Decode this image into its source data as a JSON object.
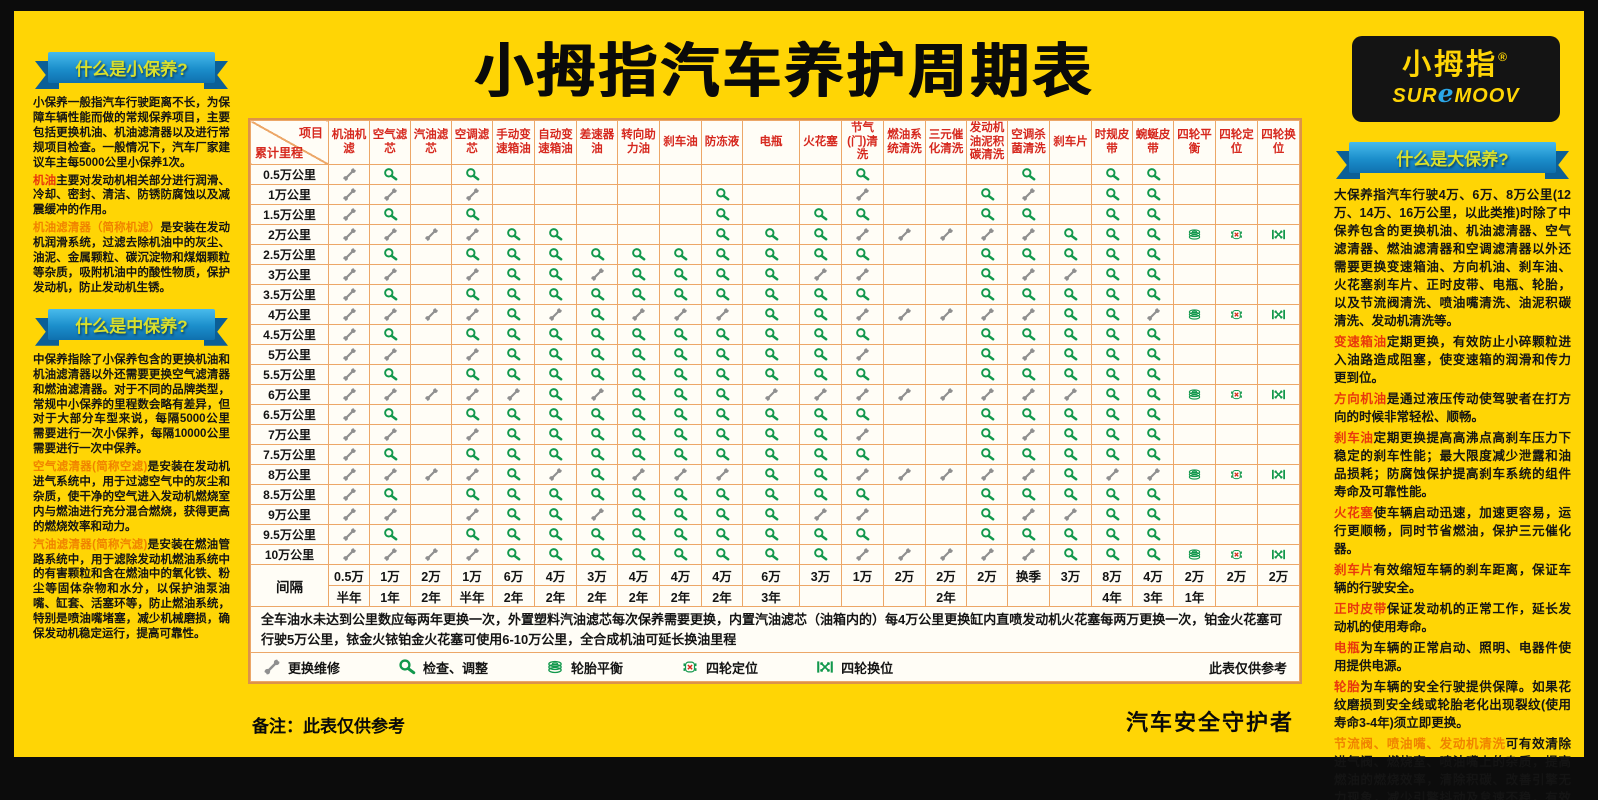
{
  "colors": {
    "background_yellow": "#ffd505",
    "frame_black": "#0c0c0c",
    "table_border_orange": "#eca768",
    "header_red": "#d6281e",
    "icon_green": "#12984c",
    "icon_gray": "#8f8f8f",
    "ribbon_blue": "#1b8ecb",
    "term_red": "#e8380d",
    "term_orange": "#f08300",
    "alignment_x_red": "#d42b1e"
  },
  "title": "小拇指汽车养护周期表",
  "logo": {
    "cn": "小拇指",
    "reg": "®",
    "en_left": "SUR",
    "en_e": "e",
    "en_right": "MOOV"
  },
  "sidebar_left": {
    "sections": [
      {
        "ribbon": "什么是小保养?",
        "paragraphs": [
          {
            "term": "",
            "color": "",
            "text": "小保养一般指汽车行驶距离不长，为保障车辆性能而做的常规保养项目，主要包括更换机油、机油滤清器以及进行常规项目检查。一般情况下，汽车厂家建议车主每5000公里小保养1次。"
          },
          {
            "term": "机油",
            "color": "term-red",
            "text": "主要对发动机相关部分进行润滑、冷却、密封、清洁、防锈防腐蚀以及减震缓冲的作用。"
          },
          {
            "term": "机油滤清器（简称机滤）",
            "color": "term-orange",
            "text": "是安装在发动机润滑系统，过滤去除机油中的灰尘、油泥、金属颗粒、碳沉淀物和煤烟颗粒等杂质，吸附机油中的酸性物质，保护发动机，防止发动机生锈。"
          }
        ]
      },
      {
        "ribbon": "什么是中保养?",
        "paragraphs": [
          {
            "term": "",
            "color": "",
            "text": "中保养指除了小保养包含的更换机油和机油滤清器以外还需要更换空气滤清器和燃油滤清器。对于不同的品牌类型，常规中小保养的里程数会略有差异，但对于大部分车型来说，每隔5000公里需要进行一次小保养，每隔10000公里需要进行一次中保养。"
          },
          {
            "term": "空气滤清器(简称空滤)",
            "color": "term-orange",
            "text": "是安装在发动机进气系统中，用于过滤空气中的灰尘和杂质，使干净的空气进入发动机燃烧室内与燃油进行充分混合燃烧，获得更高的燃烧效率和动力。"
          },
          {
            "term": "汽油滤清器(简称汽滤)",
            "color": "term-orange",
            "text": "是安装在燃油管路系统中，用于滤除发动机燃油系统中的有害颗粒和含在燃油中的氧化铁、粉尘等固体杂物和水分，以保护油泵油嘴、缸套、活塞环等，防止燃油系统，特别是喷油嘴堵塞，减少机械磨损，确保发动机稳定运行，提高可靠性。"
          }
        ]
      }
    ]
  },
  "sidebar_right": {
    "sections": [
      {
        "ribbon": "什么是大保养?",
        "paragraphs": [
          {
            "term": "",
            "color": "",
            "text": "大保养指汽车行驶4万、6万、8万公里(12万、14万、16万公里，以此类推)时除了中保养包含的更换机油、机油滤清器、空气滤清器、燃油滤清器和空调滤清器以外还需要更换变速箱油、方向机油、刹车油、火花塞刹车片、正时皮带、电瓶、轮胎，以及节流阀清洗、喷油嘴清洗、油泥积碳清洗、发动机清洗等。"
          },
          {
            "term": "变速箱油",
            "color": "term-red",
            "text": "定期更换，有效防止小碎颗粒进入油路造成阻塞，使变速箱的润滑和传力更到位。"
          },
          {
            "term": "方向机油",
            "color": "term-red",
            "text": "是通过液压传动使驾驶者在打方向的时候非常轻松、顺畅。"
          },
          {
            "term": "刹车油",
            "color": "term-red",
            "text": "定期更换提高高沸点高刹车压力下稳定的刹车性能；最大限度减少泄露和油品损耗；防腐蚀保护提高刹车系统的组件寿命及可靠性能。"
          },
          {
            "term": "火花塞",
            "color": "term-red",
            "text": "使车辆启动迅速，加速更容易，运行更顺畅，同时节省燃油，保护三元催化器。"
          },
          {
            "term": "刹车片",
            "color": "term-red",
            "text": "有效缩短车辆的刹车距离，保证车辆的行驶安全。"
          },
          {
            "term": "正时皮带",
            "color": "term-red",
            "text": "保证发动机的正常工作，延长发动机的使用寿命。"
          },
          {
            "term": "电瓶",
            "color": "term-red",
            "text": "为车辆的正常启动、照明、电器件使用提供电源。"
          },
          {
            "term": "轮胎",
            "color": "term-red",
            "text": "为车辆的安全行驶提供保障。如果花纹磨损到安全线或轮胎老化出现裂纹(使用寿命3-4年)须立即更换。"
          },
          {
            "term": "节流阀、喷油嘴、发动机清洗",
            "color": "term-orange",
            "text": "可有效清除进气阀、燃烧室、喷油嘴上的杂质，提高燃油的燃烧效率，清除积碳、改善引擎无力现象，减少引擎抖动及怠速不稳，有效节省燃油。"
          }
        ]
      }
    ]
  },
  "table": {
    "corner_top": "项目",
    "corner_bottom": "累计里程",
    "columns": [
      "机油机滤",
      "空气滤芯",
      "汽油滤芯",
      "空调滤芯",
      "手动变速箱油",
      "自动变速箱油",
      "差速器油",
      "转向助力油",
      "刹车油",
      "防冻液",
      "电瓶",
      "火花塞",
      "节气(门)清洗",
      "燃油系统清洗",
      "三元催化清洗",
      "发动机油泥积碳清洗",
      "空调杀菌清洗",
      "刹车片",
      "时规皮带",
      "蜿蜒皮带",
      "四轮平衡",
      "四轮定位",
      "四轮换位"
    ],
    "cell_codes": {
      "W": "wrench-icon 更换维修",
      "C": "magnifier-icon 检查、调整",
      "B": "tire-balance-icon 轮胎平衡",
      "A": "wheel-alignment-icon 四轮定位",
      "S": "tire-rotation-icon 四轮换位"
    },
    "rows": [
      {
        "label": "0.5万公里",
        "cells": [
          "W",
          "C",
          "",
          "C",
          "",
          "",
          "",
          "",
          "",
          "",
          "",
          "",
          "C",
          "",
          "",
          "",
          "C",
          "",
          "C",
          "C",
          "",
          "",
          ""
        ]
      },
      {
        "label": "1万公里",
        "cells": [
          "W",
          "W",
          "",
          "W",
          "",
          "",
          "",
          "",
          "",
          "C",
          "",
          "",
          "W",
          "",
          "",
          "C",
          "W",
          "",
          "C",
          "C",
          "",
          "",
          ""
        ]
      },
      {
        "label": "1.5万公里",
        "cells": [
          "W",
          "C",
          "",
          "C",
          "",
          "",
          "",
          "",
          "",
          "C",
          "",
          "C",
          "C",
          "",
          "",
          "C",
          "C",
          "",
          "C",
          "C",
          "",
          "",
          ""
        ]
      },
      {
        "label": "2万公里",
        "cells": [
          "W",
          "W",
          "W",
          "W",
          "C",
          "C",
          "",
          "",
          "",
          "C",
          "C",
          "C",
          "W",
          "W",
          "W",
          "W",
          "W",
          "C",
          "C",
          "C",
          "B",
          "A",
          "S"
        ]
      },
      {
        "label": "2.5万公里",
        "cells": [
          "W",
          "C",
          "",
          "C",
          "C",
          "C",
          "C",
          "C",
          "C",
          "C",
          "C",
          "C",
          "C",
          "",
          "",
          "C",
          "C",
          "C",
          "C",
          "C",
          "",
          "",
          ""
        ]
      },
      {
        "label": "3万公里",
        "cells": [
          "W",
          "W",
          "",
          "W",
          "C",
          "C",
          "W",
          "C",
          "C",
          "C",
          "C",
          "W",
          "W",
          "",
          "",
          "C",
          "W",
          "W",
          "C",
          "C",
          "",
          "",
          ""
        ]
      },
      {
        "label": "3.5万公里",
        "cells": [
          "W",
          "C",
          "",
          "C",
          "C",
          "C",
          "C",
          "C",
          "C",
          "C",
          "C",
          "C",
          "C",
          "",
          "",
          "C",
          "C",
          "C",
          "C",
          "C",
          "",
          "",
          ""
        ]
      },
      {
        "label": "4万公里",
        "cells": [
          "W",
          "W",
          "W",
          "W",
          "C",
          "W",
          "C",
          "W",
          "W",
          "W",
          "C",
          "C",
          "W",
          "W",
          "W",
          "W",
          "W",
          "C",
          "C",
          "W",
          "B",
          "A",
          "S"
        ]
      },
      {
        "label": "4.5万公里",
        "cells": [
          "W",
          "C",
          "",
          "C",
          "C",
          "C",
          "C",
          "C",
          "C",
          "C",
          "C",
          "C",
          "C",
          "",
          "",
          "C",
          "C",
          "C",
          "C",
          "C",
          "",
          "",
          ""
        ]
      },
      {
        "label": "5万公里",
        "cells": [
          "W",
          "W",
          "",
          "W",
          "C",
          "C",
          "C",
          "C",
          "C",
          "C",
          "C",
          "C",
          "W",
          "",
          "",
          "C",
          "W",
          "C",
          "C",
          "C",
          "",
          "",
          ""
        ]
      },
      {
        "label": "5.5万公里",
        "cells": [
          "W",
          "C",
          "",
          "C",
          "C",
          "C",
          "C",
          "C",
          "C",
          "C",
          "C",
          "C",
          "C",
          "",
          "",
          "C",
          "C",
          "C",
          "C",
          "C",
          "",
          "",
          ""
        ]
      },
      {
        "label": "6万公里",
        "cells": [
          "W",
          "W",
          "W",
          "W",
          "W",
          "C",
          "W",
          "C",
          "C",
          "C",
          "W",
          "W",
          "W",
          "W",
          "W",
          "W",
          "W",
          "W",
          "C",
          "C",
          "B",
          "A",
          "S"
        ]
      },
      {
        "label": "6.5万公里",
        "cells": [
          "W",
          "C",
          "",
          "C",
          "C",
          "C",
          "C",
          "C",
          "C",
          "C",
          "C",
          "C",
          "C",
          "",
          "",
          "C",
          "C",
          "C",
          "C",
          "C",
          "",
          "",
          ""
        ]
      },
      {
        "label": "7万公里",
        "cells": [
          "W",
          "W",
          "",
          "W",
          "C",
          "C",
          "C",
          "C",
          "C",
          "C",
          "C",
          "C",
          "W",
          "",
          "",
          "C",
          "W",
          "C",
          "C",
          "C",
          "",
          "",
          ""
        ]
      },
      {
        "label": "7.5万公里",
        "cells": [
          "W",
          "C",
          "",
          "C",
          "C",
          "C",
          "C",
          "C",
          "C",
          "C",
          "C",
          "C",
          "C",
          "",
          "",
          "C",
          "C",
          "C",
          "C",
          "C",
          "",
          "",
          ""
        ]
      },
      {
        "label": "8万公里",
        "cells": [
          "W",
          "W",
          "W",
          "W",
          "C",
          "W",
          "C",
          "W",
          "W",
          "W",
          "C",
          "C",
          "W",
          "W",
          "W",
          "W",
          "W",
          "C",
          "W",
          "W",
          "B",
          "A",
          "S"
        ]
      },
      {
        "label": "8.5万公里",
        "cells": [
          "W",
          "C",
          "",
          "C",
          "C",
          "C",
          "C",
          "C",
          "C",
          "C",
          "C",
          "C",
          "C",
          "",
          "",
          "C",
          "C",
          "C",
          "C",
          "C",
          "",
          "",
          ""
        ]
      },
      {
        "label": "9万公里",
        "cells": [
          "W",
          "W",
          "",
          "W",
          "C",
          "C",
          "W",
          "C",
          "C",
          "C",
          "C",
          "W",
          "W",
          "",
          "",
          "C",
          "W",
          "W",
          "C",
          "C",
          "",
          "",
          ""
        ]
      },
      {
        "label": "9.5万公里",
        "cells": [
          "W",
          "C",
          "",
          "C",
          "C",
          "C",
          "C",
          "C",
          "C",
          "C",
          "C",
          "C",
          "C",
          "",
          "",
          "C",
          "C",
          "C",
          "C",
          "C",
          "",
          "",
          ""
        ]
      },
      {
        "label": "10万公里",
        "cells": [
          "W",
          "W",
          "W",
          "W",
          "C",
          "C",
          "C",
          "C",
          "C",
          "C",
          "C",
          "C",
          "W",
          "W",
          "W",
          "W",
          "W",
          "C",
          "C",
          "C",
          "B",
          "A",
          "S"
        ]
      }
    ],
    "interval_label": "间隔",
    "intervals": [
      "0.5万",
      "1万",
      "2万",
      "1万",
      "6万",
      "4万",
      "3万",
      "4万",
      "4万",
      "4万",
      "6万",
      "3万",
      "1万",
      "2万",
      "2万",
      "2万",
      "换季",
      "3万",
      "8万",
      "4万",
      "2万",
      "2万",
      "2万"
    ],
    "years": [
      "半年",
      "1年",
      "2年",
      "半年",
      "2年",
      "2年",
      "2年",
      "2年",
      "2年",
      "2年",
      "3年",
      "",
      "",
      "",
      "2年",
      "",
      "",
      "",
      "4年",
      "3年",
      "1年",
      "",
      ""
    ],
    "note": "全车油水未达到公里数应每两年更换一次，外置塑料汽油滤芯每次保养需要更换，内置汽油滤芯（油箱内的）每4万公里更换缸内直喷发动机火花塞每两万更换一次，铂金火花塞可行驶5万公里，铱金火铱铂金火花塞可使用6-10万公里，全合成机油可延长换油里程",
    "legend": [
      {
        "icon": "wrench-icon",
        "label": "更换维修"
      },
      {
        "icon": "magnifier-icon",
        "label": "检查、调整"
      },
      {
        "icon": "tire-balance-icon",
        "label": "轮胎平衡"
      },
      {
        "icon": "wheel-alignment-icon",
        "label": "四轮定位"
      },
      {
        "icon": "tire-rotation-icon",
        "label": "四轮换位"
      }
    ],
    "legend_note": "此表仅供参考"
  },
  "footer": {
    "remark": "备注：此表仅供参考",
    "slogan": "汽车安全守护者"
  }
}
